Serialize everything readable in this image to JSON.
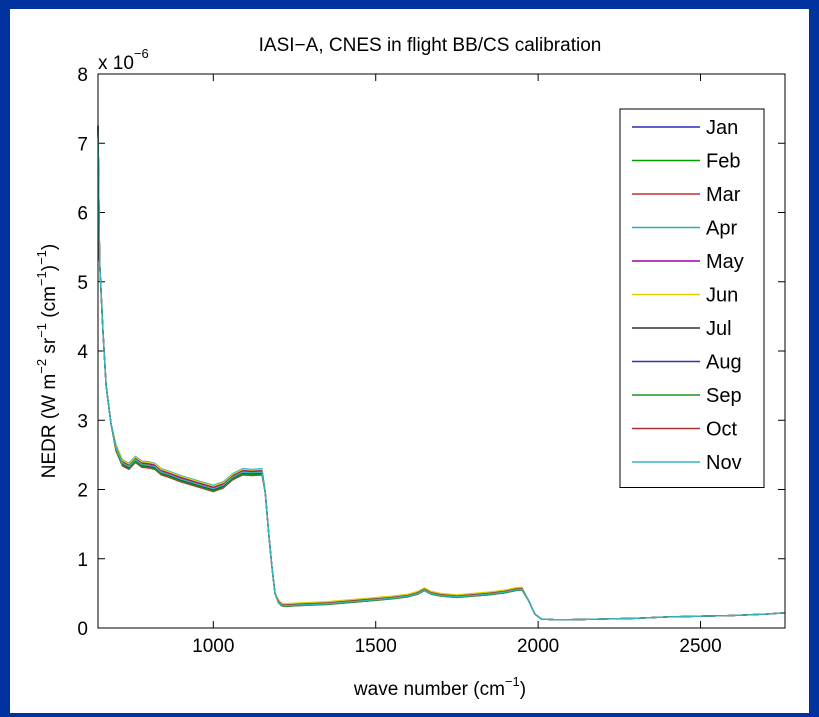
{
  "chart_data": {
    "type": "line",
    "title": "IASI−A, CNES in flight BB/CS calibration",
    "xlabel": {
      "base": "wave number (cm",
      "sup": "−1",
      "tail": ")"
    },
    "ylabel": {
      "parts": [
        {
          "t": "NEDR (W m",
          "sup": false
        },
        {
          "t": "−2",
          "sup": true
        },
        {
          "t": " sr",
          "sup": false
        },
        {
          "t": "−1",
          "sup": true
        },
        {
          "t": " (cm",
          "sup": false
        },
        {
          "t": "−1",
          "sup": true
        },
        {
          "t": ")",
          "sup": false
        },
        {
          "t": "−1",
          "sup": true
        },
        {
          "t": ")",
          "sup": false
        }
      ]
    },
    "y_multiplier": {
      "base": "x 10",
      "exp": "−6"
    },
    "xlim": [
      645,
      2760
    ],
    "ylim": [
      0,
      8
    ],
    "xticks": [
      1000,
      1500,
      2000,
      2500
    ],
    "yticks": [
      0,
      1,
      2,
      3,
      4,
      5,
      6,
      7,
      8
    ],
    "grid": false,
    "legend_position": "top-right",
    "base_curve": {
      "x": [
        645,
        650,
        660,
        670,
        685,
        700,
        720,
        740,
        760,
        780,
        800,
        820,
        840,
        860,
        900,
        950,
        1000,
        1030,
        1060,
        1090,
        1120,
        1150,
        1160,
        1170,
        1180,
        1190,
        1200,
        1210,
        1220,
        1250,
        1300,
        1350,
        1400,
        1450,
        1500,
        1550,
        1600,
        1630,
        1650,
        1670,
        1700,
        1750,
        1800,
        1850,
        1900,
        1930,
        1950,
        1970,
        1990,
        2010,
        2050,
        2100,
        2200,
        2300,
        2400,
        2500,
        2600,
        2700,
        2760
      ],
      "y": [
        7.25,
        5.3,
        4.3,
        3.5,
        2.95,
        2.6,
        2.38,
        2.33,
        2.43,
        2.36,
        2.35,
        2.33,
        2.25,
        2.22,
        2.15,
        2.08,
        2.01,
        2.06,
        2.18,
        2.25,
        2.24,
        2.25,
        1.95,
        1.4,
        0.9,
        0.5,
        0.38,
        0.33,
        0.32,
        0.33,
        0.34,
        0.35,
        0.37,
        0.39,
        0.41,
        0.43,
        0.46,
        0.5,
        0.55,
        0.5,
        0.47,
        0.45,
        0.47,
        0.49,
        0.52,
        0.55,
        0.56,
        0.4,
        0.2,
        0.13,
        0.12,
        0.12,
        0.13,
        0.14,
        0.16,
        0.17,
        0.18,
        0.2,
        0.22
      ]
    },
    "series": [
      {
        "name": "Jan",
        "color": "#2b2bb8",
        "dy_low": 0.03,
        "dy_high": 0.01
      },
      {
        "name": "Feb",
        "color": "#00a000",
        "dy_low": -0.02,
        "dy_high": 0.0
      },
      {
        "name": "Mar",
        "color": "#c03030",
        "dy_low": -0.04,
        "dy_high": -0.01
      },
      {
        "name": "Apr",
        "color": "#20b0c0",
        "dy_low": 0.05,
        "dy_high": 0.02
      },
      {
        "name": "May",
        "color": "#a000b0",
        "dy_low": 0.02,
        "dy_high": 0.01
      },
      {
        "name": "Jun",
        "color": "#e0d000",
        "dy_low": 0.04,
        "dy_high": 0.03
      },
      {
        "name": "Jul",
        "color": "#303030",
        "dy_low": -0.01,
        "dy_high": 0.0
      },
      {
        "name": "Aug",
        "color": "#3030c0",
        "dy_low": 0.0,
        "dy_high": 0.0
      },
      {
        "name": "Sep",
        "color": "#209020",
        "dy_low": -0.03,
        "dy_high": -0.01
      },
      {
        "name": "Oct",
        "color": "#b03030",
        "dy_low": 0.01,
        "dy_high": 0.01
      },
      {
        "name": "Nov",
        "color": "#30b8c0",
        "dy_low": 0.0,
        "dy_high": 0.0
      }
    ]
  }
}
